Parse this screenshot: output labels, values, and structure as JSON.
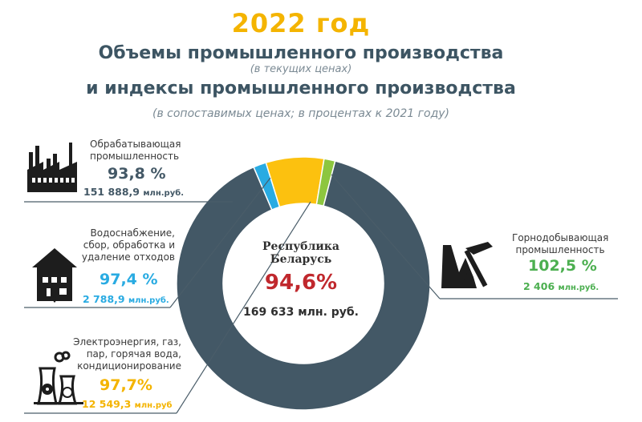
{
  "header": {
    "year": "2022 год",
    "title_line1": "Объемы промышленного производства",
    "note_line1": "(в текущих ценах)",
    "title_line2": "и индексы промышленного производства",
    "note_line2": "(в сопоставимых ценах; в процентах к 2021 году)"
  },
  "center": {
    "name_line1": "Республика",
    "name_line2": "Беларусь",
    "index": "94,6%",
    "total": "169 633 млн. руб."
  },
  "sectors": [
    {
      "label_lines": [
        "Обрабатывающая",
        "промышленность"
      ],
      "index": "93,8 %",
      "value_num": "151 888,9",
      "value_unit": "млн.руб.",
      "icon": "factory-icon"
    },
    {
      "label_lines": [
        "Водоснабжение,",
        "сбор, обработка и",
        "удаление отходов"
      ],
      "index": "97,4 %",
      "value_num": "2 788,9",
      "value_unit": "млн.руб.",
      "icon": "house-icon"
    },
    {
      "label_lines": [
        "Электроэнергия, газ,",
        "пар, горячая вода,",
        "кондиционирование"
      ],
      "index": "97,7%",
      "value_num": "12 549,3",
      "value_unit": "млн.руб",
      "icon": "power-plant-icon"
    },
    {
      "label_lines": [
        "Горнодобывающая",
        "промышленность"
      ],
      "index": "102,5 %",
      "value_num": "2 406",
      "value_unit": "млн.руб.",
      "icon": "mining-icon"
    }
  ],
  "colors": {
    "manufacturing": "#435866",
    "water": "#29abe2",
    "energy": "#fcc10f",
    "mining": "#8dc63f",
    "accent_red": "#c0282d",
    "title_yellow": "#f4b400"
  },
  "chart_data": {
    "type": "pie",
    "style": "donut",
    "categories": [
      "Обрабатывающая промышленность",
      "Водоснабжение, сбор, обработка и удаление отходов",
      "Электроэнергия, газ, пар, горячая вода, кондиционирование",
      "Горнодобывающая промышленность"
    ],
    "values": [
      151888.9,
      2788.9,
      12549.3,
      2406
    ],
    "indices": [
      93.8,
      97.4,
      97.7,
      102.5
    ],
    "colors": [
      "#435866",
      "#29abe2",
      "#fcc10f",
      "#8dc63f"
    ],
    "total": 169633,
    "total_index": 94.6
  }
}
